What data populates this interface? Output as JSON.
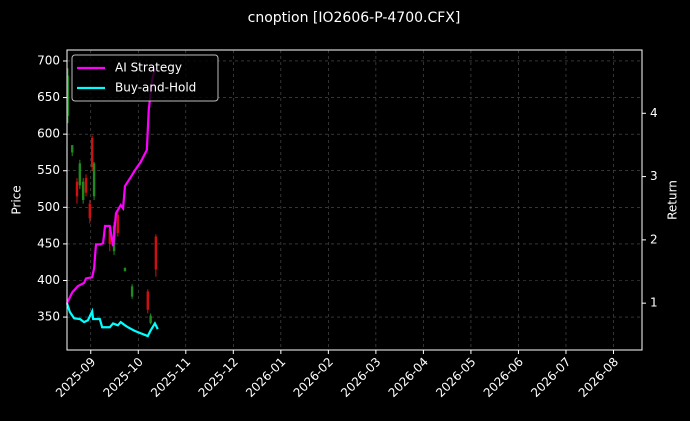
{
  "chart_data": {
    "type": "candlestick",
    "title": "cnoption [IO2606-P-4700.CFX]",
    "ylabel": "Price",
    "y2label": "Return",
    "xlim": [
      8.5,
      20.6
    ],
    "xticks": [
      {
        "value": 9,
        "label": "2025-09"
      },
      {
        "value": 10,
        "label": "2025-10"
      },
      {
        "value": 11,
        "label": "2025-11"
      },
      {
        "value": 12,
        "label": "2025-12"
      },
      {
        "value": 13,
        "label": "2026-01"
      },
      {
        "value": 14,
        "label": "2026-02"
      },
      {
        "value": 15,
        "label": "2026-03"
      },
      {
        "value": 16,
        "label": "2026-04"
      },
      {
        "value": 17,
        "label": "2026-05"
      },
      {
        "value": 18,
        "label": "2026-06"
      },
      {
        "value": 19,
        "label": "2026-07"
      },
      {
        "value": 20,
        "label": "2026-08"
      }
    ],
    "ylim": [
      305,
      715
    ],
    "yticks": [
      350,
      400,
      450,
      500,
      550,
      600,
      650,
      700
    ],
    "y2lim": [
      0.26,
      5.0
    ],
    "y2ticks": [
      1,
      2,
      3,
      4
    ],
    "grid": true,
    "legend": "upper left",
    "candles": {
      "up_color": "#1f8a1f",
      "down_color": "#d01010",
      "x": [
        8.52,
        8.61,
        8.71,
        8.77,
        8.84,
        8.9,
        8.98,
        9.03,
        9.07,
        9.4,
        9.49,
        9.57,
        9.72,
        9.87,
        10.2,
        10.26,
        10.37
      ],
      "open": [
        625,
        575,
        535,
        530,
        510,
        540,
        505,
        595,
        515,
        470,
        440,
        490,
        413,
        378,
        385,
        342,
        460
      ],
      "high": [
        690,
        585,
        540,
        565,
        540,
        545,
        510,
        598,
        562,
        475,
        480,
        495,
        418,
        395,
        388,
        355,
        463
      ],
      "low": [
        615,
        570,
        505,
        525,
        505,
        515,
        478,
        550,
        510,
        440,
        435,
        460,
        412,
        375,
        355,
        340,
        405
      ],
      "close": [
        680,
        585,
        515,
        560,
        535,
        520,
        485,
        555,
        560,
        450,
        475,
        465,
        417,
        392,
        360,
        352,
        415
      ]
    },
    "series": [
      {
        "name": "AI Strategy",
        "color": "#ff00ff",
        "axis": "y2",
        "x": [
          8.5,
          8.61,
          8.73,
          8.86,
          8.9,
          9.03,
          9.07,
          9.11,
          9.21,
          9.26,
          9.3,
          9.4,
          9.47,
          9.53,
          9.63,
          9.68,
          9.72,
          9.84,
          9.93,
          10.05,
          10.18,
          10.22,
          10.29,
          10.35
        ],
        "values": [
          1.0,
          1.17,
          1.27,
          1.32,
          1.39,
          1.41,
          1.55,
          1.93,
          1.93,
          1.95,
          2.22,
          2.22,
          1.9,
          2.42,
          2.55,
          2.5,
          2.85,
          2.99,
          3.1,
          3.23,
          3.42,
          4.05,
          4.52,
          4.71
        ]
      },
      {
        "name": "Buy-and-Hold",
        "color": "#00ffff",
        "axis": "y2",
        "x": [
          8.5,
          8.56,
          8.65,
          8.77,
          8.86,
          8.94,
          9.03,
          9.05,
          9.19,
          9.24,
          9.4,
          9.47,
          9.57,
          9.63,
          9.72,
          9.78,
          9.93,
          10.03,
          10.2,
          10.26,
          10.35,
          10.41
        ],
        "values": [
          1.0,
          0.86,
          0.76,
          0.75,
          0.7,
          0.73,
          0.87,
          0.75,
          0.75,
          0.62,
          0.62,
          0.68,
          0.65,
          0.7,
          0.65,
          0.62,
          0.56,
          0.53,
          0.48,
          0.57,
          0.68,
          0.59
        ]
      }
    ]
  }
}
